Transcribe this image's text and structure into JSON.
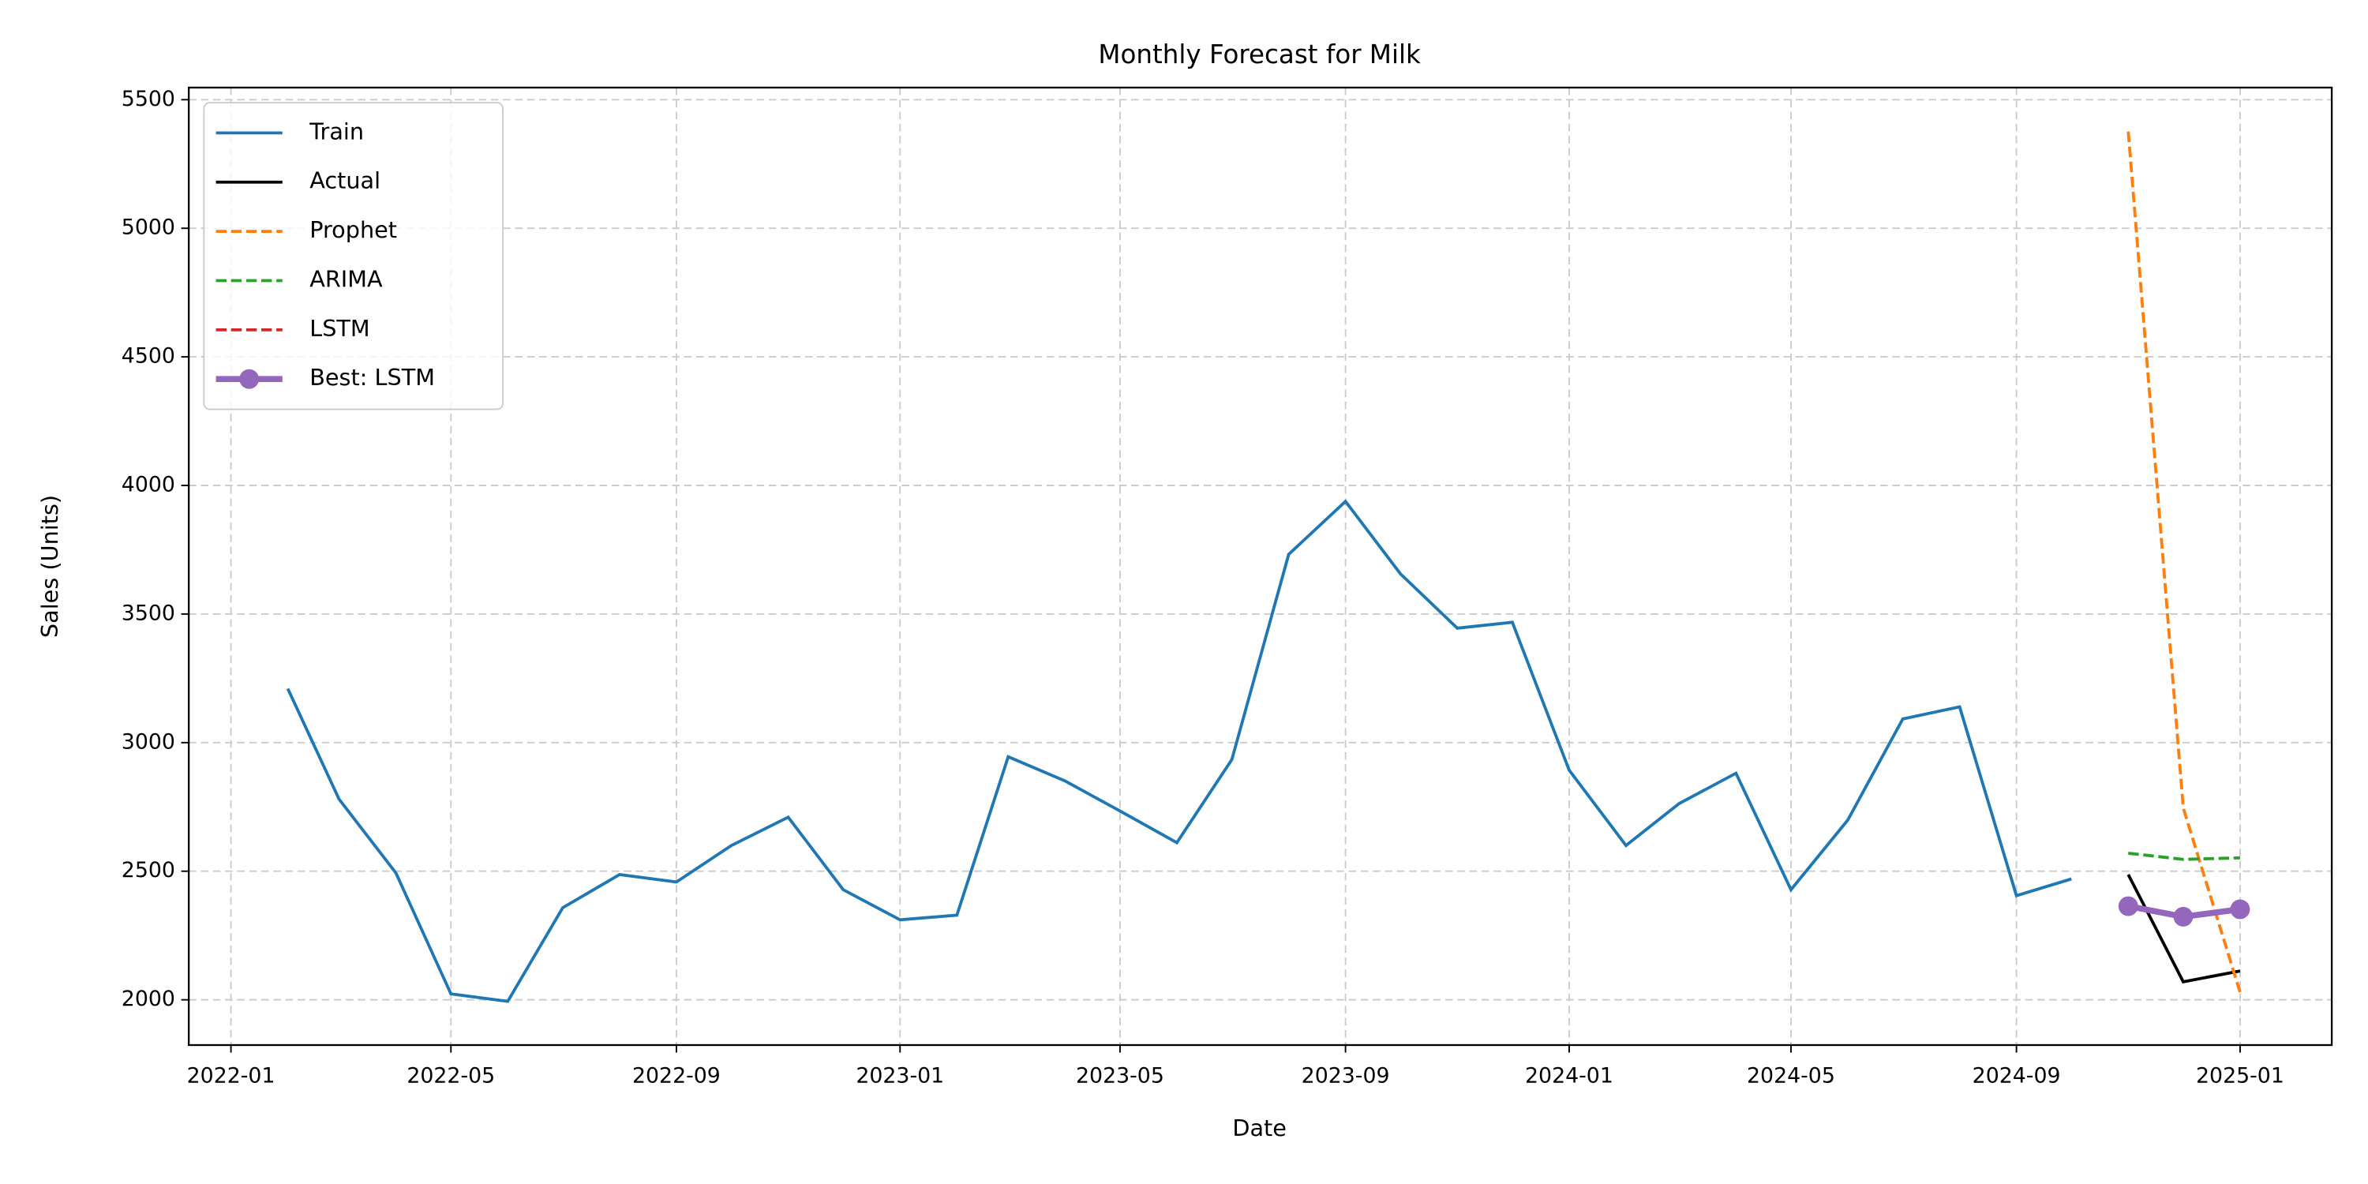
{
  "chart_data": {
    "type": "line",
    "title": "Monthly Forecast for Milk",
    "xlabel": "Date",
    "ylabel": "Sales (Units)",
    "xlim": [
      "2021-12-09",
      "2025-02-20"
    ],
    "xticks": [
      "2022-01",
      "2022-05",
      "2022-09",
      "2023-01",
      "2023-05",
      "2023-09",
      "2024-01",
      "2024-05",
      "2024-09",
      "2025-01"
    ],
    "ylim": [
      1824,
      5547
    ],
    "yticks": [
      2000,
      2500,
      3000,
      3500,
      4000,
      4500,
      5000,
      5500
    ],
    "grid": true,
    "legend": "upper left",
    "series": [
      {
        "name": "Train",
        "color": "#1f77b4",
        "style": "solid",
        "linewidth": 2,
        "x": [
          "2022-02",
          "2022-03",
          "2022-04",
          "2022-05",
          "2022-06",
          "2022-07",
          "2022-08",
          "2022-09",
          "2022-10",
          "2022-11",
          "2022-12",
          "2023-01",
          "2023-02",
          "2023-03",
          "2023-04",
          "2023-05",
          "2023-06",
          "2023-07",
          "2023-08",
          "2023-09",
          "2023-10",
          "2023-11",
          "2023-12",
          "2024-01",
          "2024-02",
          "2024-03",
          "2024-04",
          "2024-05",
          "2024-06",
          "2024-07",
          "2024-08",
          "2024-09",
          "2024-10"
        ],
        "values": [
          3210,
          2780,
          2493,
          2023,
          1994,
          2358,
          2487,
          2458,
          2600,
          2710,
          2428,
          2311,
          2329,
          2945,
          2851,
          2734,
          2611,
          2934,
          3732,
          3938,
          3656,
          3445,
          3468,
          2893,
          2600,
          2763,
          2881,
          2428,
          2699,
          3092,
          3139,
          2405,
          2470
        ]
      },
      {
        "name": "Actual",
        "color": "#000000",
        "style": "solid",
        "linewidth": 2,
        "x": [
          "2024-11",
          "2024-12",
          "2025-01"
        ],
        "values": [
          2487,
          2070,
          2112
        ]
      },
      {
        "name": "Prophet",
        "color": "#ff7f0e",
        "style": "dashed",
        "linewidth": 2,
        "x": [
          "2024-11",
          "2024-12",
          "2025-01"
        ],
        "values": [
          5376,
          2746,
          2029
        ]
      },
      {
        "name": "ARIMA",
        "color": "#2ca02c",
        "style": "dashed",
        "linewidth": 2,
        "x": [
          "2024-11",
          "2024-12",
          "2025-01"
        ],
        "values": [
          2570,
          2546,
          2552
        ]
      },
      {
        "name": "LSTM",
        "color": "#d62728",
        "style": "dashed",
        "linewidth": 2,
        "x": [
          "2024-11",
          "2024-12",
          "2025-01"
        ],
        "values": [
          2364,
          2323,
          2352
        ]
      },
      {
        "name": "Best: LSTM",
        "color": "#9467bd",
        "style": "solid",
        "linewidth": 4,
        "marker": "o",
        "x": [
          "2024-11",
          "2024-12",
          "2025-01"
        ],
        "values": [
          2364,
          2323,
          2352
        ]
      }
    ]
  }
}
